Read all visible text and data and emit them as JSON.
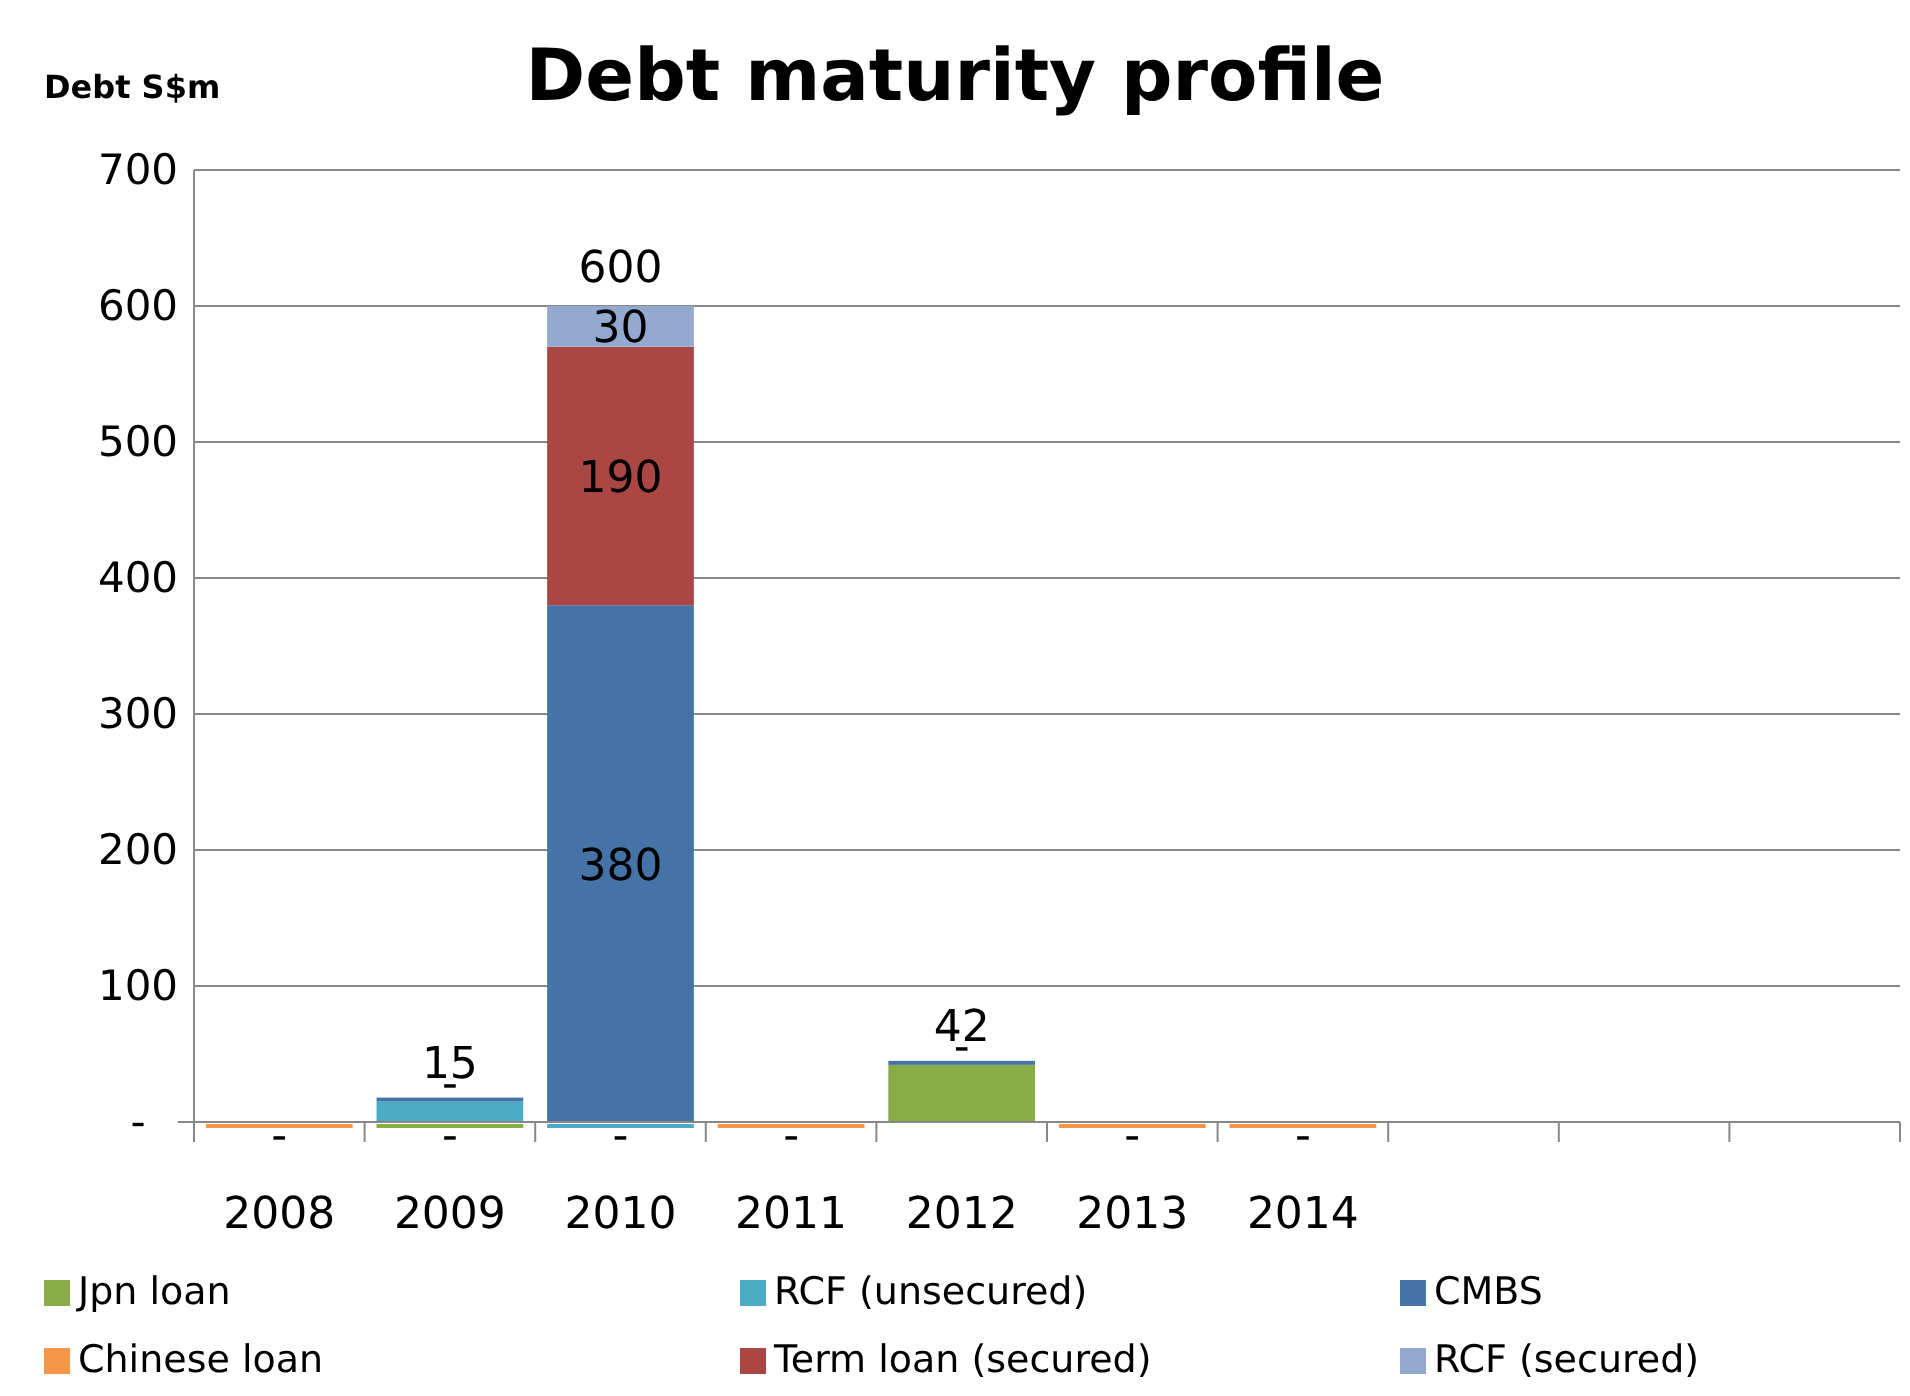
{
  "chart_data": {
    "type": "bar",
    "stacked": true,
    "title": "Debt maturity profile",
    "ylabel": "Debt S$m",
    "categories": [
      "2008",
      "2009",
      "2010",
      "2011",
      "2012",
      "2013",
      "2014",
      null,
      null,
      null
    ],
    "series": [
      {
        "name": "Jpn loan",
        "color": "#8aac46",
        "values": [
          0,
          0,
          0,
          0,
          42,
          0,
          0,
          null,
          null,
          null
        ],
        "value_labels": [
          null,
          "-",
          null,
          null,
          null,
          null,
          null,
          null,
          null,
          null
        ]
      },
      {
        "name": "RCF (unsecured)",
        "color": "#4bacc6",
        "values": [
          0,
          15,
          0,
          0,
          0,
          0,
          0,
          null,
          null,
          null
        ],
        "value_labels": [
          null,
          null,
          "-",
          null,
          null,
          null,
          null,
          null,
          null,
          null
        ]
      },
      {
        "name": "CMBS",
        "color": "#4573a7",
        "values": [
          0,
          0,
          380,
          0,
          0,
          0,
          0,
          null,
          null,
          null
        ],
        "value_labels": [
          null,
          "-",
          "380",
          null,
          "-",
          null,
          null,
          null,
          null,
          null
        ]
      },
      {
        "name": "Chinese loan",
        "color": "#f79646",
        "values": [
          0,
          0,
          0,
          0,
          0,
          0,
          0,
          null,
          null,
          null
        ],
        "value_labels": [
          "-",
          null,
          null,
          "-",
          null,
          "-",
          "-",
          null,
          null,
          null
        ]
      },
      {
        "name": "Term loan (secured)",
        "color": "#aa4643",
        "values": [
          0,
          0,
          190,
          0,
          0,
          0,
          0,
          null,
          null,
          null
        ],
        "value_labels": [
          null,
          null,
          "190",
          null,
          null,
          null,
          null,
          null,
          null,
          null
        ]
      },
      {
        "name": "RCF (secured)",
        "color": "#93a9cf",
        "values": [
          0,
          0,
          30,
          0,
          0,
          0,
          0,
          null,
          null,
          null
        ],
        "value_labels": [
          null,
          null,
          "30",
          null,
          null,
          null,
          null,
          null,
          null,
          null
        ]
      }
    ],
    "totals": [
      null,
      "15",
      "600",
      null,
      "42",
      null,
      null,
      null,
      null,
      null
    ],
    "ylim": [
      0,
      700
    ],
    "yticks": [
      {
        "value": 0,
        "label": "-"
      },
      100,
      200,
      300,
      400,
      500,
      600,
      700
    ],
    "grid": "y",
    "legend": "bottom"
  }
}
